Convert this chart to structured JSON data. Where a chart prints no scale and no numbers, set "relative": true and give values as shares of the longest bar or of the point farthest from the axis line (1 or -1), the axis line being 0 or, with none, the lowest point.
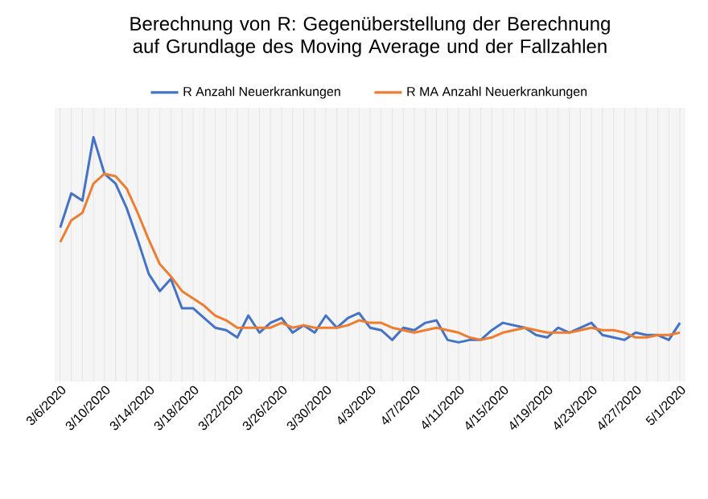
{
  "chart_data": {
    "type": "line",
    "title": "Berechnung von R: Gegenüberstellung  der Berechnung auf Grundlage des Moving Average und der Fallzahlen",
    "categories": [
      "3/6/2020",
      null,
      null,
      null,
      "3/10/2020",
      null,
      null,
      null,
      "3/14/2020",
      null,
      null,
      null,
      "3/18/2020",
      null,
      null,
      null,
      "3/22/2020",
      null,
      null,
      null,
      "3/26/2020",
      null,
      null,
      null,
      "3/30/2020",
      null,
      null,
      null,
      "4/3/2020",
      null,
      null,
      null,
      "4/7/2020",
      null,
      null,
      null,
      "4/11/2020",
      null,
      null,
      null,
      "4/15/2020",
      null,
      null,
      null,
      "4/19/2020",
      null,
      null,
      null,
      "4/23/2020",
      null,
      null,
      null,
      "4/27/2020",
      null,
      null,
      null,
      "5/1/2020"
    ],
    "relative": true,
    "grid": "x",
    "legend": "top",
    "marker": "none",
    "line_style": "solid",
    "series": [
      {
        "name": "R Anzahl Neuerkrankungen",
        "color": "#4472c4",
        "values": [
          0.63,
          0.77,
          0.74,
          1.0,
          0.85,
          0.81,
          0.71,
          0.58,
          0.44,
          0.37,
          0.42,
          0.3,
          0.3,
          0.26,
          0.22,
          0.21,
          0.18,
          0.27,
          0.2,
          0.24,
          0.26,
          0.2,
          0.23,
          0.2,
          0.27,
          0.22,
          0.26,
          0.28,
          0.22,
          0.21,
          0.17,
          0.22,
          0.21,
          0.24,
          0.25,
          0.17,
          0.16,
          0.17,
          0.17,
          0.21,
          0.24,
          0.23,
          0.22,
          0.19,
          0.18,
          0.22,
          0.2,
          0.22,
          0.24,
          0.19,
          0.18,
          0.17,
          0.2,
          0.19,
          0.19,
          0.17,
          0.24
        ]
      },
      {
        "name": "R MA Anzahl Neuerkrankungen",
        "color": "#ed7d31",
        "values": [
          0.57,
          0.66,
          0.69,
          0.81,
          0.85,
          0.84,
          0.79,
          0.69,
          0.58,
          0.48,
          0.43,
          0.37,
          0.34,
          0.31,
          0.27,
          0.25,
          0.22,
          0.22,
          0.22,
          0.22,
          0.24,
          0.22,
          0.23,
          0.22,
          0.22,
          0.22,
          0.23,
          0.25,
          0.24,
          0.24,
          0.22,
          0.21,
          0.2,
          0.21,
          0.22,
          0.21,
          0.2,
          0.18,
          0.17,
          0.18,
          0.2,
          0.21,
          0.22,
          0.21,
          0.2,
          0.2,
          0.2,
          0.21,
          0.22,
          0.21,
          0.21,
          0.2,
          0.18,
          0.18,
          0.19,
          0.19,
          0.2
        ]
      }
    ]
  }
}
